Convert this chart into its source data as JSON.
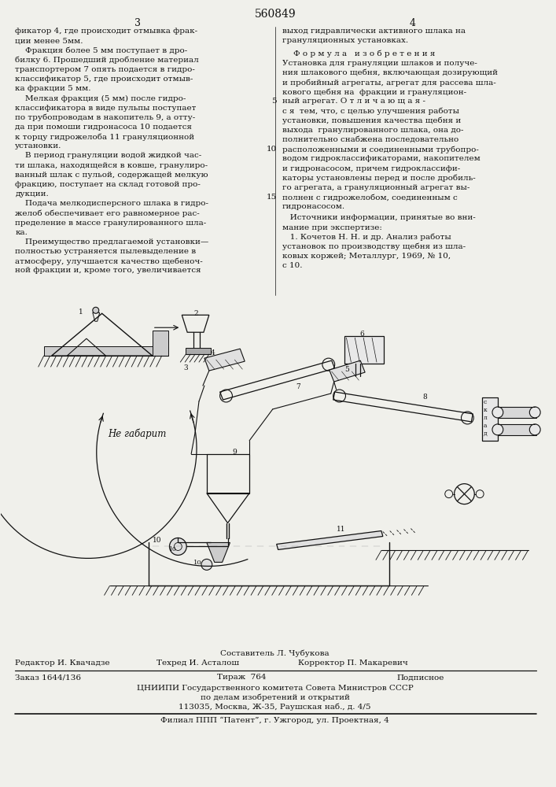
{
  "bg_color": "#f0f0eb",
  "patent_number": "560849",
  "page_left": "3",
  "page_right": "4",
  "left_col_lines": [
    "фикатор 4, где происходит отмывка фрак-",
    "ции менее 5мм.",
    "    Фракция более 5 мм поступает в дро-",
    "билку 6. Прошедший дробление материал",
    "транспортером 7 опять подается в гидро-",
    "классификатор 5, где происходит отмыв-",
    "ка фракции 5 мм.",
    "    Мелкая фракция (5 мм) после гидро-",
    "классификатора в виде пульпы поступает",
    "по трубопроводам в накопитель 9, а отту-",
    "да при помоши гидронасоса 10 подается",
    "к торцу гидрожелоба 11 грануляционной",
    "установки.",
    "    В период грануляции водой жидкой час-",
    "ти шлака, находящейся в ковше, гранулиро-",
    "ванный шлак с пульой, содержащей мелкую",
    "фракцию, поступает на склад готовой про-",
    "дукции.",
    "    Подача мелкодисперсного шлака в гидро-",
    "желоб обеспечивает его равномерное рас-",
    "пределение в массе гранулированного шла-",
    "ка.",
    "    Преимущество предлагаемой установки—",
    "полностью устраняется пылевыделение в",
    "атмосферу, улучшается качество щебеноч-",
    "ной фракции и, кроме того, увеличивается"
  ],
  "right_col_top": [
    "выход гидравлически активного шлака на",
    "грануляционных установках."
  ],
  "formula_header": "Ф о р м у л а   и з о б р е т е н и я",
  "formula_lines_with_rn": [
    [
      "Установка для грануляции шлаков и получе-",
      ""
    ],
    [
      "ния шлакового щебня, включающая дозирующий",
      ""
    ],
    [
      "и пробийный агрегаты, агрегат для рассева шла-",
      ""
    ],
    [
      "кового щебня на  фракции и грануляцион-",
      ""
    ],
    [
      "ный агрегат. О т л и ч а ю щ а я -",
      "5"
    ],
    [
      "с я  тем, что, с целью улучшения работы",
      ""
    ],
    [
      "установки, повышения качества щебня и",
      ""
    ],
    [
      "выхода  гранулированного шлака, она до-",
      ""
    ],
    [
      "полнительно снабжена последовательно",
      ""
    ],
    [
      "расположенными и соединенными трубопро-",
      "10"
    ],
    [
      "водом гидроклассификаторами, накопителем",
      ""
    ],
    [
      "и гидронасосом, причем гидроклассифи-",
      ""
    ],
    [
      "каторы установлены перед и после дробиль-",
      ""
    ],
    [
      "го агрегата, а грануляционный агрегат вы-",
      ""
    ],
    [
      "полнен с гидрожелобом, соединенным с",
      "15"
    ],
    [
      "гидронасосом.",
      ""
    ]
  ],
  "sources_lines": [
    "   Источники информации, принятые во вни-",
    "мание при экспертизе:",
    "   1. Кочетов Н. Н. и др. Анализ работы",
    "установок по производству щебня из шла-",
    "ковых коржей; Металлург, 1969, № 10,",
    "с 10."
  ],
  "not_to_scale": "Не габарит",
  "footer_composer": "Составитель Л. Чубукова",
  "footer_editor": "Редактор И. Квачадзе",
  "footer_tech": "Техред И. Асталош",
  "footer_corrector": "Корректор П. Макаревич",
  "footer_order": "Заказ 1644/136",
  "footer_print": "Тираж  764",
  "footer_sign": "Подписное",
  "footer_org": "ЦНИИПИ Государственного комитета Совета Министров СССР",
  "footer_affairs": "по делам изобретений и открытий",
  "footer_address": "113035, Москва, Ж-35, Раушская наб., д. 4/5",
  "footer_branch": "Филиал ППП “Патент”, г. Ужгород, ул. Проектная, 4",
  "sklad_letters": [
    "с",
    "к",
    "л",
    "а",
    "д"
  ]
}
